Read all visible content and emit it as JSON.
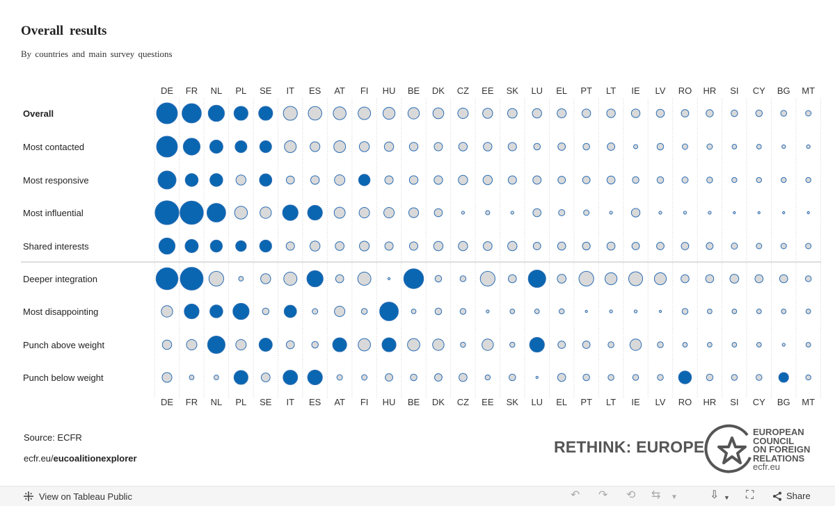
{
  "chart_data": {
    "type": "bubble-matrix",
    "title": "Overall  results",
    "subtitle": "By countries and main survey questions",
    "columns": [
      "DE",
      "FR",
      "NL",
      "PL",
      "SE",
      "IT",
      "ES",
      "AT",
      "FI",
      "HU",
      "BE",
      "DK",
      "CZ",
      "EE",
      "SK",
      "LU",
      "EL",
      "PT",
      "LT",
      "IE",
      "LV",
      "RO",
      "HR",
      "SI",
      "CY",
      "BG",
      "MT"
    ],
    "rows": [
      {
        "label": "Overall",
        "bold": true,
        "sizes": [
          1.0,
          0.85,
          0.6,
          0.45,
          0.45,
          0.45,
          0.42,
          0.38,
          0.36,
          0.33,
          0.3,
          0.27,
          0.25,
          0.23,
          0.21,
          0.2,
          0.19,
          0.17,
          0.17,
          0.17,
          0.15,
          0.13,
          0.12,
          0.1,
          0.1,
          0.08,
          0.07
        ],
        "filled": [
          1,
          1,
          1,
          1,
          1,
          0,
          0,
          0,
          0,
          0,
          0,
          0,
          0,
          0,
          0,
          0,
          0,
          0,
          0,
          0,
          0,
          0,
          0,
          0,
          0,
          0,
          0
        ]
      },
      {
        "label": "Most contacted",
        "bold": false,
        "sizes": [
          1.0,
          0.65,
          0.4,
          0.32,
          0.32,
          0.32,
          0.22,
          0.32,
          0.23,
          0.2,
          0.17,
          0.16,
          0.17,
          0.17,
          0.16,
          0.1,
          0.13,
          0.1,
          0.13,
          0.04,
          0.1,
          0.07,
          0.07,
          0.05,
          0.05,
          0.03,
          0.03
        ],
        "filled": [
          1,
          1,
          1,
          1,
          1,
          0,
          0,
          0,
          0,
          0,
          0,
          0,
          0,
          0,
          0,
          0,
          0,
          0,
          0,
          0,
          0,
          0,
          0,
          0,
          0,
          0,
          0
        ]
      },
      {
        "label": "Most responsive",
        "bold": false,
        "sizes": [
          0.75,
          0.38,
          0.38,
          0.23,
          0.35,
          0.15,
          0.17,
          0.25,
          0.3,
          0.16,
          0.17,
          0.17,
          0.2,
          0.2,
          0.16,
          0.16,
          0.13,
          0.13,
          0.15,
          0.1,
          0.1,
          0.09,
          0.08,
          0.06,
          0.06,
          0.06,
          0.06
        ],
        "filled": [
          1,
          1,
          1,
          0,
          1,
          0,
          0,
          0,
          1,
          0,
          0,
          0,
          0,
          0,
          0,
          0,
          0,
          0,
          0,
          0,
          0,
          0,
          0,
          0,
          0,
          0,
          0
        ]
      },
      {
        "label": "Most influential",
        "bold": false,
        "sizes": [
          1.3,
          1.25,
          0.8,
          0.38,
          0.3,
          0.55,
          0.5,
          0.28,
          0.25,
          0.25,
          0.22,
          0.15,
          0.02,
          0.04,
          0.02,
          0.15,
          0.09,
          0.07,
          0.02,
          0.17,
          0.02,
          0.02,
          0.02,
          0.01,
          0.01,
          0.01,
          0.01
        ],
        "filled": [
          1,
          1,
          1,
          0,
          0,
          1,
          1,
          0,
          0,
          0,
          0,
          0,
          0,
          0,
          0,
          0,
          0,
          0,
          0,
          0,
          0,
          0,
          0,
          0,
          0,
          0,
          0
        ]
      },
      {
        "label": "Shared interests",
        "bold": false,
        "sizes": [
          0.6,
          0.4,
          0.33,
          0.26,
          0.33,
          0.16,
          0.23,
          0.18,
          0.22,
          0.16,
          0.16,
          0.2,
          0.2,
          0.18,
          0.2,
          0.13,
          0.15,
          0.14,
          0.15,
          0.13,
          0.13,
          0.13,
          0.11,
          0.09,
          0.07,
          0.07,
          0.07
        ],
        "filled": [
          1,
          1,
          1,
          1,
          1,
          0,
          0,
          0,
          0,
          0,
          0,
          0,
          0,
          0,
          0,
          0,
          0,
          0,
          0,
          0,
          0,
          0,
          0,
          0,
          0,
          0,
          0
        ]
      },
      {
        "label": "Deeper integration",
        "bold": false,
        "sizes": [
          1.1,
          1.2,
          0.5,
          0.05,
          0.23,
          0.4,
          0.6,
          0.15,
          0.4,
          0.01,
          0.9,
          0.1,
          0.08,
          0.5,
          0.15,
          0.7,
          0.18,
          0.5,
          0.33,
          0.45,
          0.33,
          0.15,
          0.15,
          0.18,
          0.15,
          0.15,
          0.08
        ],
        "filled": [
          1,
          1,
          0,
          0,
          0,
          0,
          1,
          0,
          0,
          0,
          1,
          0,
          0,
          0,
          0,
          1,
          0,
          0,
          0,
          0,
          0,
          0,
          0,
          0,
          0,
          0,
          0
        ]
      },
      {
        "label": "Most disappointing",
        "bold": false,
        "sizes": [
          0.3,
          0.5,
          0.38,
          0.6,
          0.1,
          0.35,
          0.07,
          0.25,
          0.08,
          0.8,
          0.05,
          0.1,
          0.08,
          0.02,
          0.05,
          0.05,
          0.06,
          0.01,
          0.02,
          0.02,
          0.01,
          0.08,
          0.05,
          0.05,
          0.05,
          0.05,
          0.05
        ],
        "filled": [
          0,
          1,
          1,
          1,
          0,
          1,
          0,
          0,
          0,
          1,
          0,
          0,
          0,
          0,
          0,
          0,
          0,
          0,
          0,
          0,
          0,
          0,
          0,
          0,
          0,
          0,
          0
        ]
      },
      {
        "label": "Punch above weight",
        "bold": false,
        "sizes": [
          0.2,
          0.25,
          0.7,
          0.25,
          0.4,
          0.15,
          0.1,
          0.45,
          0.35,
          0.45,
          0.35,
          0.3,
          0.06,
          0.3,
          0.06,
          0.5,
          0.13,
          0.13,
          0.08,
          0.3,
          0.08,
          0.05,
          0.05,
          0.05,
          0.05,
          0.02,
          0.05
        ],
        "filled": [
          0,
          0,
          1,
          0,
          1,
          0,
          0,
          1,
          0,
          1,
          0,
          0,
          0,
          0,
          0,
          1,
          0,
          0,
          0,
          0,
          0,
          0,
          0,
          0,
          0,
          0,
          0
        ]
      },
      {
        "label": "Punch below weight",
        "bold": false,
        "sizes": [
          0.22,
          0.05,
          0.05,
          0.45,
          0.18,
          0.48,
          0.5,
          0.07,
          0.07,
          0.13,
          0.1,
          0.13,
          0.15,
          0.06,
          0.1,
          0.01,
          0.15,
          0.1,
          0.08,
          0.08,
          0.08,
          0.38,
          0.1,
          0.08,
          0.08,
          0.22,
          0.06
        ],
        "filled": [
          0,
          0,
          0,
          1,
          0,
          1,
          1,
          0,
          0,
          0,
          0,
          0,
          0,
          0,
          0,
          0,
          0,
          0,
          0,
          0,
          0,
          1,
          0,
          0,
          0,
          1,
          0
        ]
      }
    ],
    "separator_after_row": 4,
    "colors": {
      "filled": "#0a66b0",
      "empty": "#d9d9d9",
      "stroke": "#2a6db5"
    }
  },
  "footer": {
    "source": "Source: ECFR",
    "site_prefix": "ecfr.eu/",
    "site_bold": "eucoalitionexplorer",
    "rethink": "RETHINK: EUROPE",
    "ecfr_lines": [
      "EUROPEAN",
      "COUNCIL",
      "ON FOREIGN",
      "RELATIONS"
    ],
    "ecfr_url": "ecfr.eu"
  },
  "toolbar": {
    "view_label": "View on Tableau Public",
    "share_label": "Share",
    "icons": [
      "tableau-icon",
      "undo-icon",
      "redo-icon",
      "revert-icon",
      "refresh-icon",
      "dropdown-icon",
      "download-icon",
      "fullscreen-icon",
      "share-icon"
    ]
  }
}
